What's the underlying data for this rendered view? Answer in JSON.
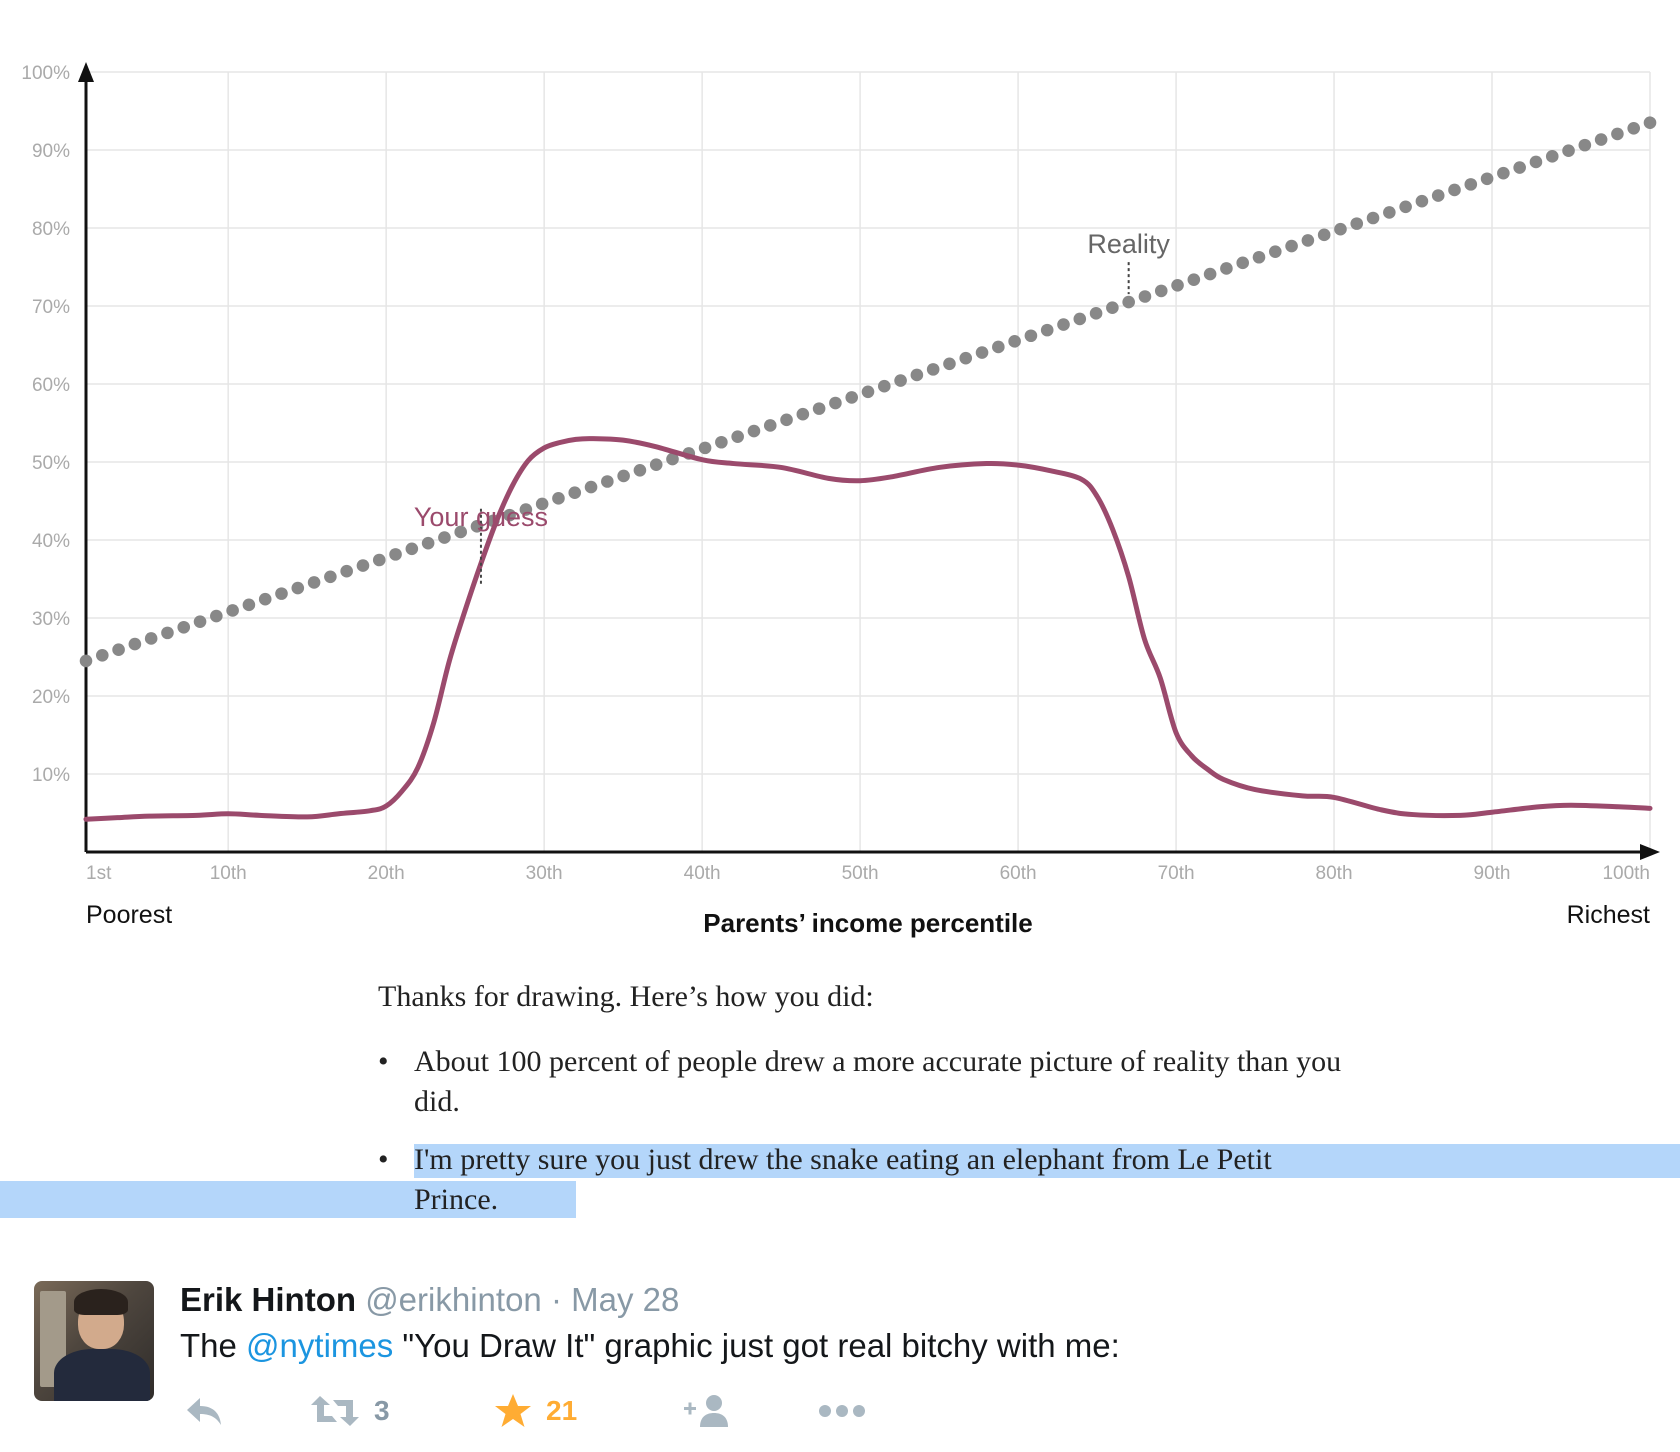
{
  "chart_data": {
    "type": "line",
    "x_tick_labels": [
      "1st",
      "10th",
      "20th",
      "30th",
      "40th",
      "50th",
      "60th",
      "70th",
      "80th",
      "90th",
      "100th"
    ],
    "x_ticks": [
      1,
      10,
      20,
      30,
      40,
      50,
      60,
      70,
      80,
      90,
      100
    ],
    "y_tick_labels": [
      "10%",
      "20%",
      "30%",
      "40%",
      "50%",
      "60%",
      "70%",
      "80%",
      "90%",
      "100%"
    ],
    "y_ticks": [
      10,
      20,
      30,
      40,
      50,
      60,
      70,
      80,
      90,
      100
    ],
    "xlim": [
      1,
      100
    ],
    "ylim": [
      0,
      100
    ],
    "xlabel": "Parents’ income percentile",
    "x_left_label": "Poorest",
    "x_right_label": "Richest",
    "grid": true,
    "series": [
      {
        "name": "Reality",
        "style": "dotted",
        "color": "#888888",
        "x": [
          1,
          100
        ],
        "y": [
          24.5,
          93.5
        ]
      },
      {
        "name": "Your guess",
        "style": "solid",
        "color": "#9b4a6c",
        "x": [
          1,
          3,
          5,
          8,
          10,
          12,
          15,
          17,
          19,
          20,
          21,
          22,
          23,
          24,
          25,
          26,
          27,
          28,
          29,
          30,
          31,
          32,
          33,
          35,
          37,
          40,
          42,
          45,
          48,
          50,
          52,
          55,
          58,
          60,
          62,
          64,
          65,
          66,
          67,
          68,
          69,
          70,
          71,
          72,
          73,
          75,
          78,
          80,
          83,
          85,
          88,
          90,
          93,
          95,
          98,
          100
        ],
        "y": [
          4.2,
          4.4,
          4.6,
          4.7,
          4.9,
          4.7,
          4.5,
          4.9,
          5.3,
          5.9,
          7.8,
          10.8,
          16.5,
          24.5,
          31,
          37,
          42.5,
          47,
          50.2,
          51.8,
          52.5,
          52.9,
          53.0,
          52.8,
          52.0,
          50.3,
          49.8,
          49.3,
          47.9,
          47.6,
          48.1,
          49.3,
          49.8,
          49.6,
          48.9,
          47.8,
          45.6,
          41.3,
          35.3,
          27.3,
          22.3,
          15.3,
          12.3,
          10.6,
          9.3,
          8.0,
          7.2,
          7.0,
          5.4,
          4.8,
          4.7,
          5.1,
          5.8,
          6.0,
          5.8,
          5.6
        ]
      }
    ],
    "annotations": [
      {
        "text": "Reality",
        "series": "Reality"
      },
      {
        "text": "Your guess",
        "series": "Your guess"
      }
    ]
  },
  "feedback": {
    "intro": "Thanks for drawing. Here’s how you did:",
    "bullet": "•",
    "items": [
      {
        "text": "About 100 percent of people drew a more accurate picture of reality than you did."
      },
      {
        "text": "I'm pretty sure you just drew the snake eating an elephant from Le Petit Prince.",
        "selected": true
      }
    ]
  },
  "tweet": {
    "name": "Erik Hinton",
    "handle": "@erikhinton",
    "separator": "·",
    "date": "May 28",
    "text_before": "The ",
    "mention": "@nytimes",
    "text_after": " \"You Draw It\" graphic just got real bitchy with me:",
    "retweet_count": "3",
    "like_count": "21",
    "colors": {
      "mention": "#1b95e0",
      "like": "#ffac33",
      "muted": "#aab8c2"
    },
    "actions": [
      "reply-icon",
      "retweet-icon",
      "like-star-icon",
      "follow-icon",
      "more-icon"
    ]
  }
}
